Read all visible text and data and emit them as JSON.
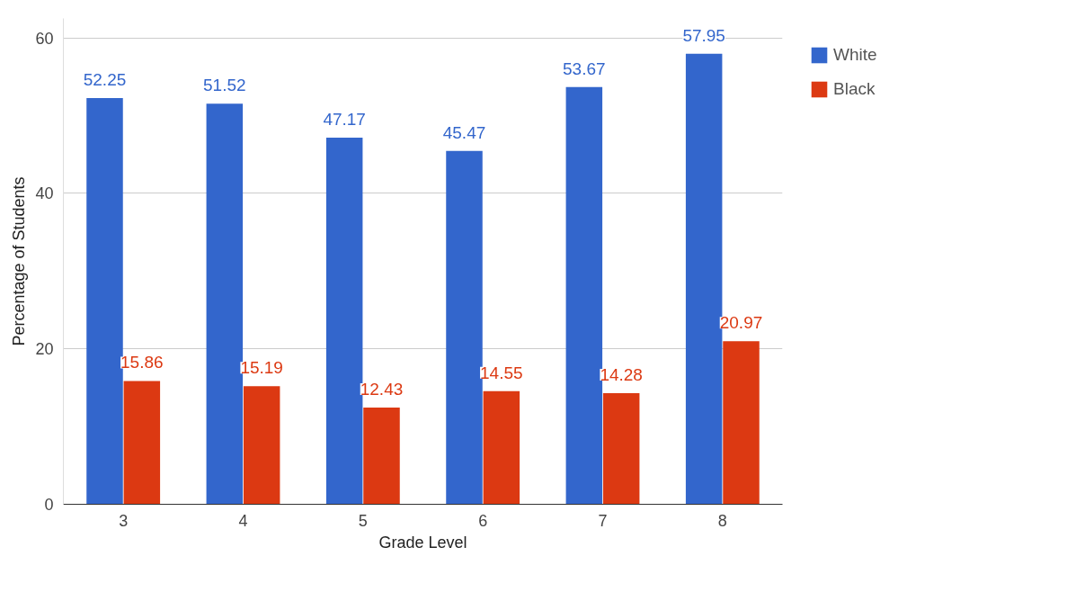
{
  "chart_data": {
    "type": "bar",
    "xlabel": "Grade Level",
    "ylabel": "Percentage of Students",
    "categories": [
      "3",
      "4",
      "5",
      "6",
      "7",
      "8"
    ],
    "series": [
      {
        "name": "White",
        "color": "#3366cc",
        "values": [
          52.25,
          51.52,
          47.17,
          45.47,
          53.67,
          57.95
        ]
      },
      {
        "name": "Black",
        "color": "#dc3912",
        "values": [
          15.86,
          15.19,
          12.43,
          14.55,
          14.28,
          20.97
        ]
      }
    ],
    "ylim": [
      0,
      62.5
    ],
    "yticks": [
      0,
      20,
      40,
      60
    ],
    "grid": "y",
    "legend": "right",
    "data_labels": true
  }
}
